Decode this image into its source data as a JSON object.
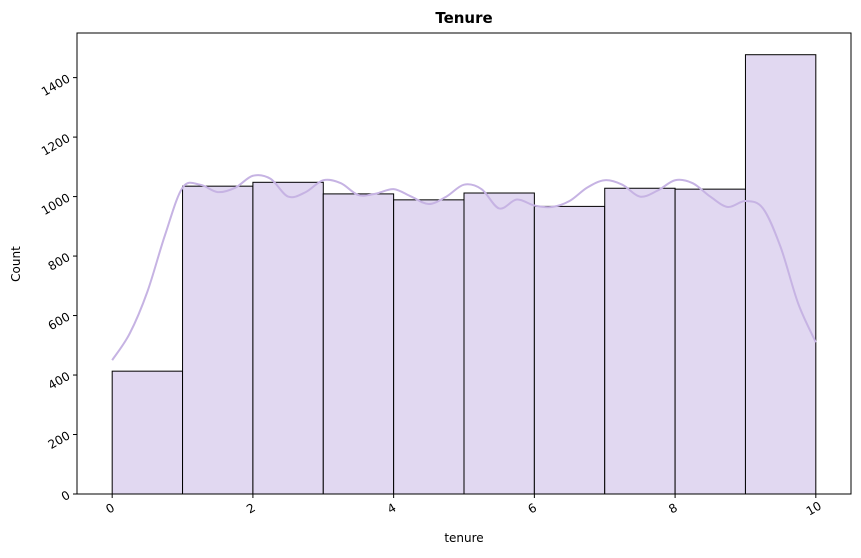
{
  "chart_data": {
    "type": "bar",
    "title": "Tenure",
    "xlabel": "tenure",
    "ylabel": "Count",
    "xlim": [
      -0.5,
      10.5
    ],
    "ylim": [
      0,
      1550
    ],
    "x_ticks": [
      "0",
      "2",
      "4",
      "6",
      "8",
      "10"
    ],
    "y_ticks": [
      "0",
      "200",
      "400",
      "600",
      "800",
      "1000",
      "1200",
      "1400"
    ],
    "bins": [
      {
        "x0": 0,
        "x1": 1,
        "count": 413
      },
      {
        "x0": 1,
        "x1": 2,
        "count": 1035
      },
      {
        "x0": 2,
        "x1": 3,
        "count": 1048
      },
      {
        "x0": 3,
        "x1": 4,
        "count": 1009
      },
      {
        "x0": 4,
        "x1": 5,
        "count": 989
      },
      {
        "x0": 5,
        "x1": 6,
        "count": 1012
      },
      {
        "x0": 6,
        "x1": 7,
        "count": 967
      },
      {
        "x0": 7,
        "x1": 8,
        "count": 1028
      },
      {
        "x0": 8,
        "x1": 9,
        "count": 1025
      },
      {
        "x0": 9,
        "x1": 10,
        "count": 1477
      }
    ],
    "kde": {
      "x": [
        0,
        0.25,
        0.5,
        0.75,
        1.0,
        1.25,
        1.5,
        1.75,
        2.0,
        2.25,
        2.5,
        2.75,
        3.0,
        3.25,
        3.5,
        3.75,
        4.0,
        4.25,
        4.5,
        4.75,
        5.0,
        5.25,
        5.5,
        5.75,
        6.0,
        6.25,
        6.5,
        6.75,
        7.0,
        7.25,
        7.5,
        7.75,
        8.0,
        8.25,
        8.5,
        8.75,
        9.0,
        9.25,
        9.5,
        9.75,
        10.0
      ],
      "y": [
        450,
        540,
        680,
        870,
        1030,
        1040,
        1015,
        1030,
        1070,
        1060,
        1000,
        1015,
        1055,
        1045,
        1005,
        1010,
        1025,
        1000,
        975,
        1000,
        1040,
        1025,
        960,
        990,
        970,
        965,
        985,
        1030,
        1055,
        1040,
        1000,
        1020,
        1055,
        1045,
        1000,
        965,
        985,
        960,
        830,
        640,
        510
      ]
    },
    "colors": {
      "bar_fill": "#e1d8f1",
      "bar_edge": "#000000",
      "kde_line": "#c6b3e3"
    },
    "grid": false,
    "legend": "none"
  }
}
